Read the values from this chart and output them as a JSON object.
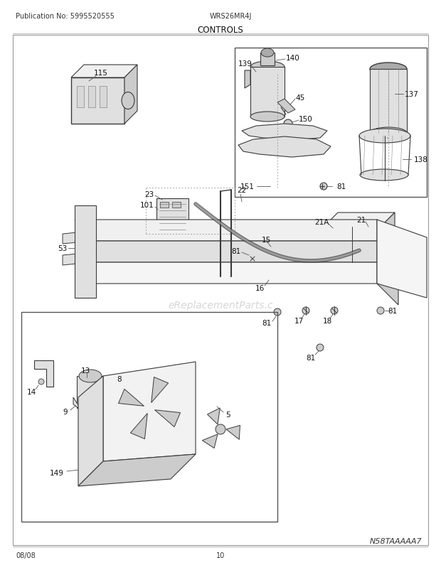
{
  "pub_no": "Publication No: 5995520555",
  "model": "WRS26MR4J",
  "section": "CONTROLS",
  "diagram_id": "N58TAAAAA7",
  "date": "08/08",
  "page": "10",
  "bg_color": "#ffffff",
  "lc": "#3a3a3a",
  "lc_light": "#888888",
  "fill_light": "#e0e0e0",
  "fill_mid": "#cccccc",
  "fill_dark": "#aaaaaa",
  "watermark": "eReplacementParts.c",
  "watermark_color": "#bbbbbb"
}
